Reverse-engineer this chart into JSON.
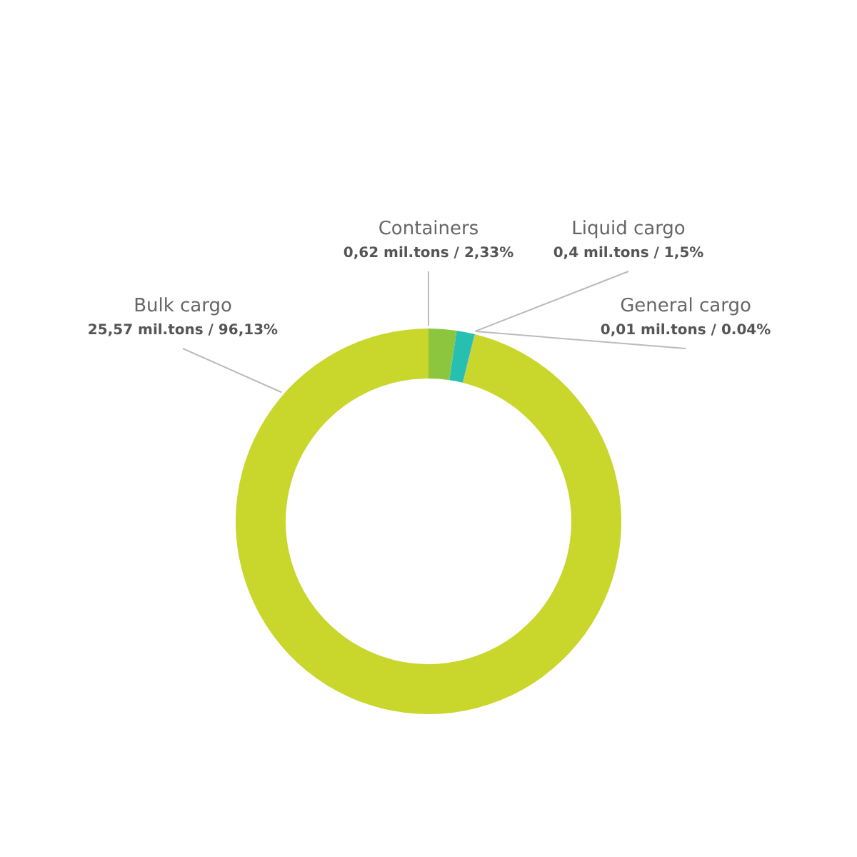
{
  "chart_data": {
    "type": "donut",
    "categories": [
      "Containers",
      "Liquid cargo",
      "General cargo",
      "Bulk cargo"
    ],
    "values": [
      0.62,
      0.4,
      0.01,
      25.57
    ],
    "colors": [
      "#8cc63f",
      "#27c0b0",
      "#2a9ee0",
      "#c9d62c"
    ],
    "value_labels": [
      "0,62 mil.tons / 2,33%",
      "0,4 mil.tons / 1,5%",
      "0,01 mil.tons / 0.04%",
      "25,57 mil.tons / 96,13%"
    ],
    "legend": false
  }
}
